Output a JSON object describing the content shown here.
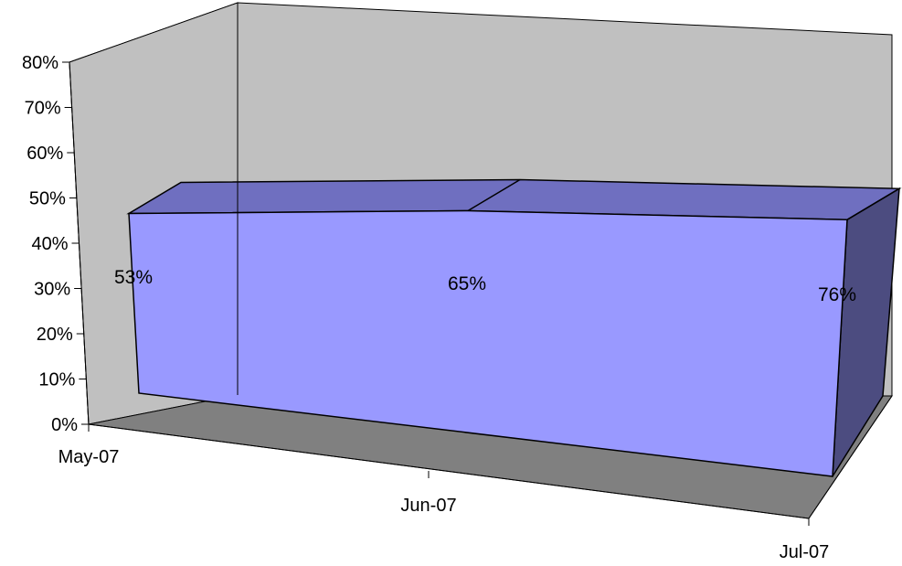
{
  "chart_data": {
    "type": "area",
    "view": "3d",
    "title": "",
    "xlabel": "",
    "ylabel": "",
    "categories": [
      "May-07",
      "Jun-07",
      "Jul-07"
    ],
    "series": [
      {
        "values": [
          0.53,
          0.65,
          0.76
        ],
        "labels": [
          "53%",
          "65%",
          "76%"
        ],
        "color": "#9999ff"
      }
    ],
    "ylim": [
      0,
      0.8
    ],
    "ytick_labels": [
      "0%",
      "10%",
      "20%",
      "30%",
      "40%",
      "50%",
      "60%",
      "70%",
      "80%"
    ],
    "grid": false,
    "legend": "none",
    "wall_color": "#c0c0c0",
    "floor_color": "#808080",
    "top_color": "#6f6fc0",
    "side_color": "#4c4c80"
  }
}
